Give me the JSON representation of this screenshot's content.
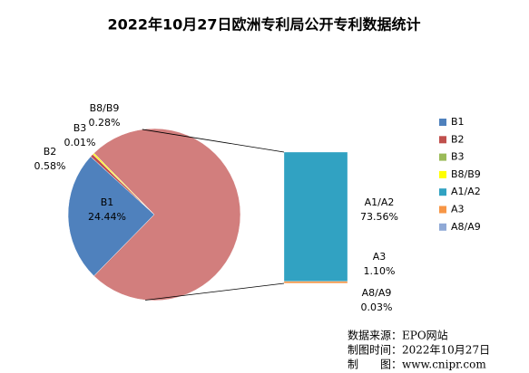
{
  "chart_data": {
    "type": "pie-of-bar",
    "title": "2022年10月27日欧洲专利局公开专利数据统计",
    "categories": [
      "B1",
      "B2",
      "B3",
      "B8/B9",
      "A1/A2",
      "A3",
      "A8/A9"
    ],
    "values": [
      24.44,
      0.58,
      0.01,
      0.28,
      73.56,
      1.1,
      0.03
    ],
    "value_labels": [
      "24.44%",
      "0.58%",
      "0.01%",
      "0.28%",
      "73.56%",
      "1.10%",
      "0.03%"
    ],
    "colors": [
      "#4f81bd",
      "#c0504d",
      "#9bbb59",
      "#ffff00",
      "#31a2c2",
      "#f79646",
      "#8fa9d6"
    ],
    "secondary_count": 3,
    "other_color": "#d27e7d",
    "legend": "right",
    "notes": [
      "数据来源：EPO网站",
      "制图时间：2022年10月27日",
      "制　　图：www.cnipr.com"
    ]
  }
}
